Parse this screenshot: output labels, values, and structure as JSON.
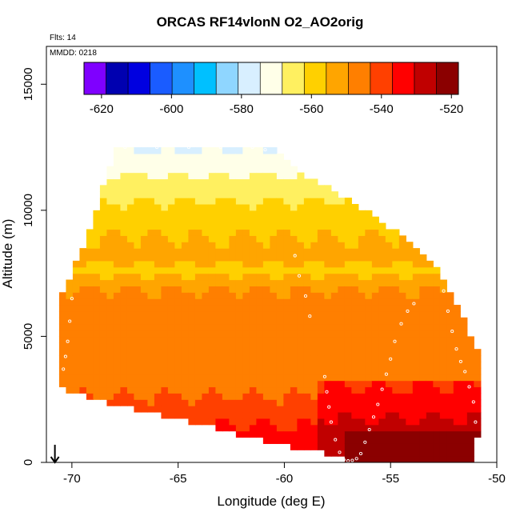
{
  "chart_data": {
    "type": "heatmap",
    "title": "ORCAS RF14vlonN O2_AO2orig",
    "notes": {
      "flights": "Flts: 14",
      "date": "MMDD: 0218"
    },
    "xlabel": "Longitude (deg E)",
    "ylabel": "Altitude (m)",
    "xlim": [
      -71.2,
      -50
    ],
    "ylim": [
      0,
      16500
    ],
    "xticks": [
      -70,
      -65,
      -60,
      -55,
      -50
    ],
    "yticks": [
      0,
      5000,
      10000,
      15000
    ],
    "colorbar": {
      "placement": "top",
      "range": [
        -625,
        -518
      ],
      "ticks": [
        -620,
        -600,
        -580,
        -560,
        -540,
        -520
      ],
      "colors": [
        "#7f00ff",
        "#0000b0",
        "#0000e0",
        "#1a5cff",
        "#1e90ff",
        "#00c0ff",
        "#8fd6ff",
        "#d8efff",
        "#ffffe8",
        "#fff060",
        "#ffd000",
        "#ffa500",
        "#ff7f00",
        "#ff4000",
        "#ff0000",
        "#c00000",
        "#8b0000"
      ]
    },
    "upper_envelope": [
      [
        -70.3,
        6700
      ],
      [
        -69.9,
        7600
      ],
      [
        -69.3,
        8600
      ],
      [
        -68.9,
        9800
      ],
      [
        -68.4,
        11300
      ],
      [
        -67.8,
        12400
      ],
      [
        -64.0,
        12500
      ],
      [
        -61.0,
        12500
      ],
      [
        -60.0,
        12000
      ],
      [
        -59.0,
        11200
      ],
      [
        -58.0,
        10800
      ],
      [
        -56.5,
        10000
      ],
      [
        -55.0,
        9200
      ],
      [
        -53.6,
        8200
      ],
      [
        -52.6,
        7300
      ],
      [
        -52.2,
        6500
      ],
      [
        -51.6,
        5600
      ],
      [
        -51.0,
        4400
      ]
    ],
    "lower_envelope": [
      [
        -70.6,
        3000
      ],
      [
        -69.5,
        2700
      ],
      [
        -68.0,
        2300
      ],
      [
        -66.0,
        1900
      ],
      [
        -64.0,
        1500
      ],
      [
        -62.0,
        1100
      ],
      [
        -60.0,
        700
      ],
      [
        -58.0,
        350
      ],
      [
        -57.0,
        80
      ],
      [
        -55.0,
        0
      ],
      [
        -51.0,
        0
      ],
      [
        -50.9,
        1300
      ]
    ],
    "value_profile": [
      {
        "alt": 0,
        "value": -534
      },
      {
        "alt": 1000,
        "value": -534
      },
      {
        "alt": 2000,
        "value": -540
      },
      {
        "alt": 3000,
        "value": -545
      },
      {
        "alt": 4000,
        "value": -547
      },
      {
        "alt": 5000,
        "value": -547
      },
      {
        "alt": 6000,
        "value": -546
      },
      {
        "alt": 7000,
        "value": -550
      },
      {
        "alt": 7600,
        "value": -558
      },
      {
        "alt": 8200,
        "value": -553
      },
      {
        "alt": 9000,
        "value": -556
      },
      {
        "alt": 10000,
        "value": -560
      },
      {
        "alt": 11000,
        "value": -566
      },
      {
        "alt": 12000,
        "value": -572
      },
      {
        "alt": 12500,
        "value": -576
      }
    ],
    "flight_track_points": [
      [
        -70.4,
        3700
      ],
      [
        -70.3,
        4200
      ],
      [
        -70.2,
        4800
      ],
      [
        -70.1,
        5600
      ],
      [
        -70.0,
        6500
      ],
      [
        -67.5,
        12500
      ],
      [
        -66.0,
        12500
      ],
      [
        -64.5,
        12500
      ],
      [
        -63.0,
        12500
      ],
      [
        -61.5,
        12500
      ],
      [
        -60.9,
        12400
      ],
      [
        -59.5,
        8200
      ],
      [
        -59.3,
        7400
      ],
      [
        -59.0,
        6600
      ],
      [
        -58.8,
        5800
      ],
      [
        -58.1,
        3400
      ],
      [
        -58.0,
        2800
      ],
      [
        -57.9,
        2200
      ],
      [
        -57.8,
        1600
      ],
      [
        -57.6,
        900
      ],
      [
        -57.4,
        400
      ],
      [
        -57.2,
        100
      ],
      [
        -57.0,
        60
      ],
      [
        -56.8,
        80
      ],
      [
        -56.6,
        150
      ],
      [
        -56.4,
        350
      ],
      [
        -56.2,
        800
      ],
      [
        -56.0,
        1300
      ],
      [
        -55.8,
        1800
      ],
      [
        -55.6,
        2300
      ],
      [
        -55.4,
        2900
      ],
      [
        -55.2,
        3500
      ],
      [
        -55.0,
        4100
      ],
      [
        -54.8,
        4800
      ],
      [
        -54.5,
        5500
      ],
      [
        -54.2,
        6000
      ],
      [
        -53.9,
        6300
      ],
      [
        -52.5,
        6800
      ],
      [
        -52.3,
        6000
      ],
      [
        -52.1,
        5200
      ],
      [
        -51.9,
        4500
      ],
      [
        -51.7,
        4000
      ],
      [
        -51.5,
        3600
      ],
      [
        -51.3,
        3000
      ],
      [
        -51.1,
        2400
      ],
      [
        -51.0,
        1600
      ],
      [
        -50.9,
        900
      ],
      [
        -50.9,
        300
      ]
    ],
    "arrow": {
      "lon": -70.8,
      "from_alt": 700,
      "to_alt": 0
    }
  }
}
